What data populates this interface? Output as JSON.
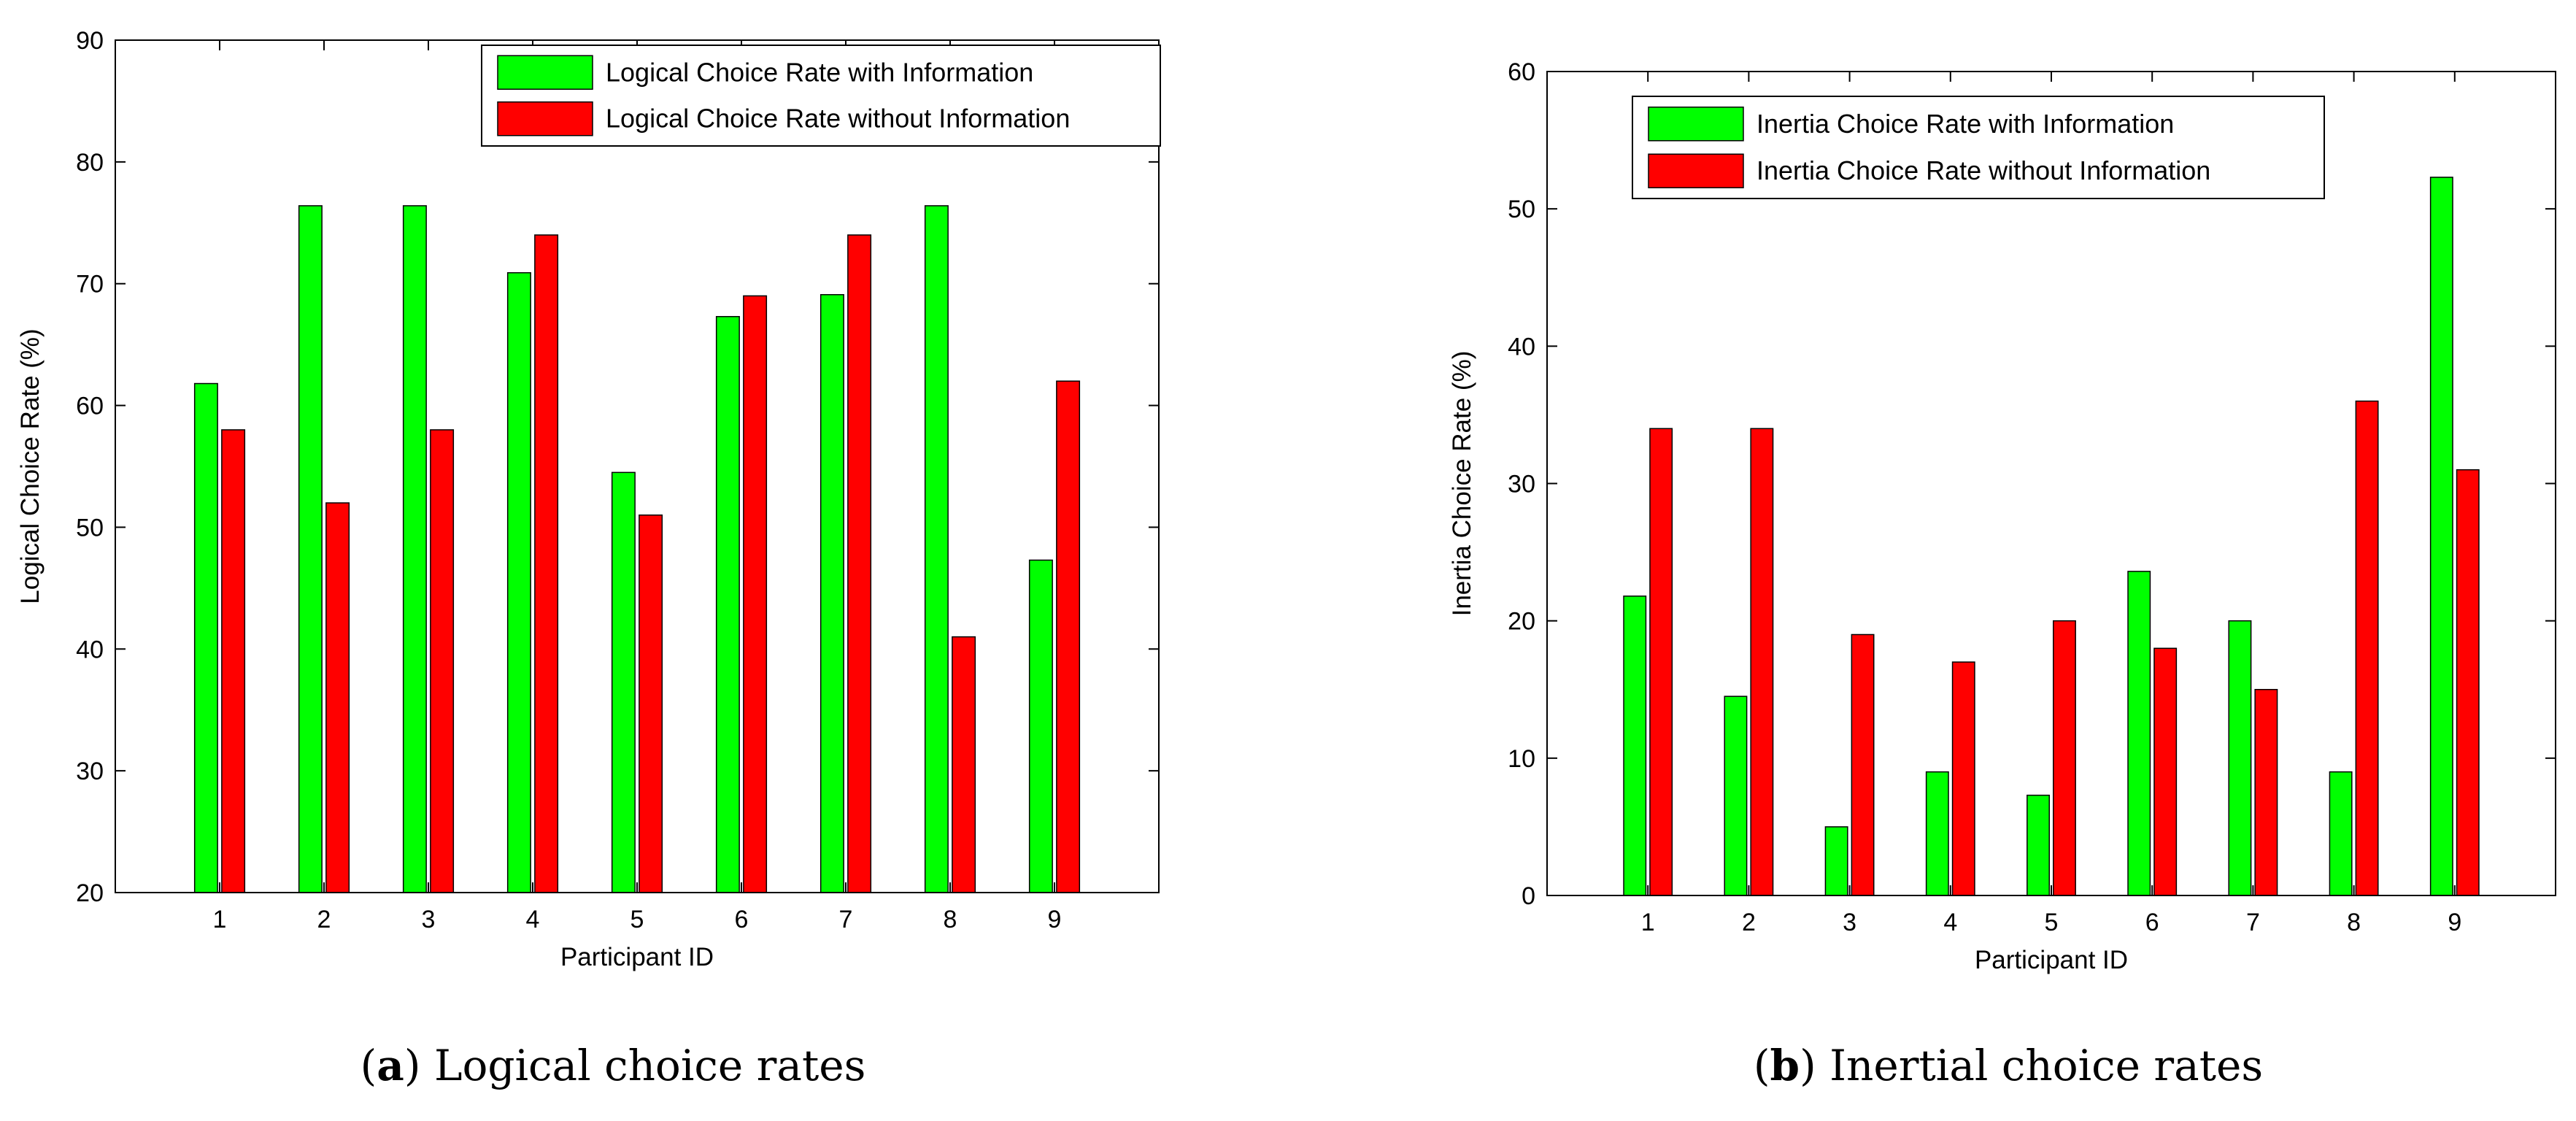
{
  "charts": [
    {
      "caption_label": "a",
      "caption_text": "Logical choice rates",
      "legend": {
        "with_label": "Logical Choice Rate with Information",
        "without_label": "Logical Choice Rate without Information"
      }
    },
    {
      "caption_label": "b",
      "caption_text": "Inertial choice rates",
      "legend": {
        "with_label": "Inertia Choice Rate with Information",
        "without_label": "Inertia Choice Rate without Information"
      }
    }
  ],
  "colors": {
    "with": "#00ff00",
    "without": "#ff0000"
  },
  "chart_data": [
    {
      "type": "bar",
      "title": "",
      "xlabel": "Participant ID",
      "ylabel": "Logical Choice Rate (%)",
      "categories": [
        "1",
        "2",
        "3",
        "4",
        "5",
        "6",
        "7",
        "8",
        "9"
      ],
      "ylim": [
        20,
        90
      ],
      "yticks": [
        20,
        30,
        40,
        50,
        60,
        70,
        80,
        90
      ],
      "xlim": [
        0,
        10
      ],
      "legend_position": "top-right",
      "series": [
        {
          "name": "Logical Choice Rate with Information",
          "color": "#00ff00",
          "values": [
            61.8,
            76.4,
            76.4,
            70.9,
            54.5,
            67.3,
            69.1,
            76.4,
            47.3
          ]
        },
        {
          "name": "Logical Choice Rate without Information",
          "color": "#ff0000",
          "values": [
            58,
            52,
            58,
            74,
            51,
            69,
            74,
            41,
            62
          ]
        }
      ]
    },
    {
      "type": "bar",
      "title": "",
      "xlabel": "Participant ID",
      "ylabel": "Inertia Choice Rate (%)",
      "categories": [
        "1",
        "2",
        "3",
        "4",
        "5",
        "6",
        "7",
        "8",
        "9"
      ],
      "ylim": [
        0,
        60
      ],
      "yticks": [
        0,
        10,
        20,
        30,
        40,
        50,
        60
      ],
      "xlim": [
        0,
        10
      ],
      "legend_position": "top-left",
      "series": [
        {
          "name": "Inertia Choice Rate with Information",
          "color": "#00ff00",
          "values": [
            21.8,
            14.5,
            5,
            9,
            7.3,
            23.6,
            20,
            9,
            52.3
          ]
        },
        {
          "name": "Inertia Choice Rate without Information",
          "color": "#ff0000",
          "values": [
            34,
            34,
            19,
            17,
            20,
            18,
            15,
            36,
            31
          ]
        }
      ]
    }
  ]
}
